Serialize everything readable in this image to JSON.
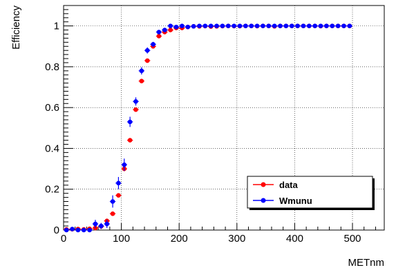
{
  "chart_data": {
    "type": "scatter",
    "title": "",
    "xlabel": "METnm",
    "ylabel": "Efficiency",
    "xlim": [
      0,
      555
    ],
    "ylim": [
      0,
      1.1
    ],
    "grid": true,
    "grid_style": "dotted",
    "legend": "bottom-right",
    "x_ticks": [
      "0",
      "100",
      "200",
      "300",
      "400",
      "500"
    ],
    "y_ticks": [
      "0",
      "0.2",
      "0.4",
      "0.6",
      "0.8",
      "1"
    ],
    "series": [
      {
        "name": "data",
        "color": "#ff0000",
        "x": [
          5,
          15,
          25,
          35,
          45,
          55,
          65,
          75,
          85,
          95,
          105,
          115,
          125,
          135,
          145,
          155,
          165,
          175,
          185,
          195,
          205,
          215,
          225,
          235,
          245,
          255,
          265,
          275,
          285,
          295,
          305,
          315,
          325,
          335,
          345,
          355,
          365,
          375,
          385,
          395,
          405,
          415,
          425,
          435,
          445,
          455,
          465,
          475,
          485,
          495
        ],
        "y": [
          0.003,
          0.004,
          0.005,
          0.003,
          0.006,
          0.01,
          0.018,
          0.045,
          0.08,
          0.17,
          0.3,
          0.44,
          0.59,
          0.73,
          0.83,
          0.9,
          0.95,
          0.97,
          0.98,
          0.99,
          0.99,
          0.995,
          0.998,
          0.998,
          0.999,
          0.997,
          0.998,
          0.999,
          1.0,
          0.999,
          0.999,
          1.0,
          1.0,
          0.999,
          1.0,
          1.0,
          0.998,
          1.0,
          1.0,
          1.0,
          1.0,
          1.0,
          1.0,
          1.0,
          0.999,
          1.0,
          1.0,
          1.0,
          1.0,
          1.0
        ],
        "y_err": [
          0.003,
          0.003,
          0.003,
          0.003,
          0.004,
          0.005,
          0.006,
          0.008,
          0.01,
          0.01,
          0.012,
          0.01,
          0.01,
          0.008,
          0.007,
          0.006,
          0.005,
          0.004,
          0.003,
          0.003,
          0.003,
          0.002,
          0.002,
          0.002,
          0.002,
          0.002,
          0.002,
          0.002,
          0.002,
          0.002,
          0.002,
          0.002,
          0.002,
          0.002,
          0.002,
          0.002,
          0.002,
          0.002,
          0.002,
          0.002,
          0.002,
          0.002,
          0.002,
          0.002,
          0.002,
          0.002,
          0.002,
          0.002,
          0.002,
          0.002
        ]
      },
      {
        "name": "Wmunu",
        "color": "#0000ff",
        "x": [
          5,
          15,
          25,
          35,
          45,
          55,
          65,
          75,
          85,
          95,
          105,
          115,
          125,
          135,
          145,
          155,
          165,
          175,
          185,
          195,
          205,
          215,
          225,
          235,
          245,
          255,
          265,
          275,
          285,
          295,
          305,
          315,
          325,
          335,
          345,
          355,
          365,
          375,
          385,
          395,
          405,
          415,
          425,
          435,
          445,
          455,
          465,
          475,
          485,
          495
        ],
        "y": [
          0.0,
          0.005,
          0.0,
          0.0,
          0.0,
          0.03,
          0.02,
          0.03,
          0.14,
          0.23,
          0.32,
          0.53,
          0.63,
          0.78,
          0.88,
          0.91,
          0.97,
          0.98,
          1.0,
          0.995,
          1.0,
          0.995,
          0.998,
          1.0,
          1.0,
          1.0,
          1.0,
          1.0,
          1.0,
          1.0,
          1.0,
          1.0,
          1.0,
          1.0,
          1.0,
          1.0,
          1.0,
          1.0,
          1.0,
          1.0,
          1.0,
          1.0,
          1.0,
          1.0,
          1.0,
          1.0,
          1.0,
          1.0,
          1.0,
          1.0
        ],
        "y_err": [
          0.01,
          0.01,
          0.01,
          0.01,
          0.01,
          0.02,
          0.015,
          0.02,
          0.03,
          0.03,
          0.03,
          0.025,
          0.02,
          0.018,
          0.015,
          0.012,
          0.01,
          0.008,
          0.006,
          0.005,
          0.004,
          0.004,
          0.003,
          0.003,
          0.003,
          0.003,
          0.003,
          0.003,
          0.003,
          0.003,
          0.003,
          0.003,
          0.003,
          0.003,
          0.003,
          0.003,
          0.003,
          0.003,
          0.003,
          0.003,
          0.003,
          0.003,
          0.003,
          0.003,
          0.003,
          0.003,
          0.003,
          0.003,
          0.003,
          0.003
        ]
      }
    ]
  }
}
